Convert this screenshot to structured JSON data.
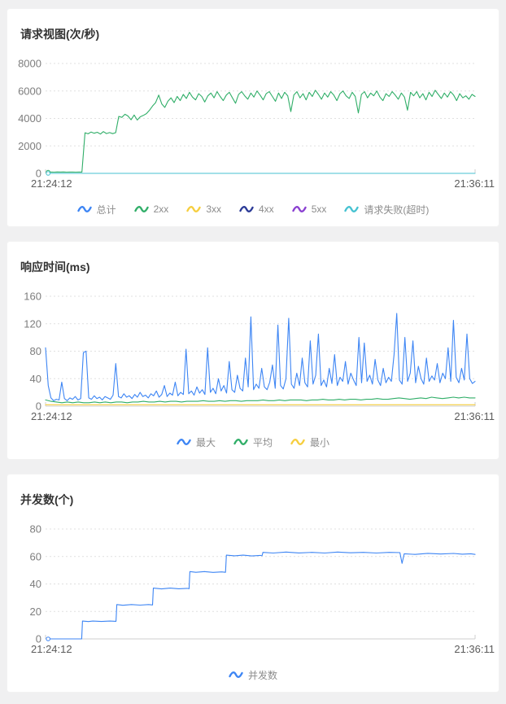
{
  "chart_data": [
    {
      "type": "line",
      "title": "请求视图(次/秒)",
      "ylim": [
        0,
        8000
      ],
      "y_ticks": [
        0,
        2000,
        4000,
        6000,
        8000
      ],
      "x_labels": [
        "21:24:12",
        "21:36:11"
      ],
      "grid": "horizontal-dotted",
      "legend_position": "bottom",
      "legend": [
        {
          "label": "总计",
          "color": "#3d85f4"
        },
        {
          "label": "2xx",
          "color": "#30ae68"
        },
        {
          "label": "3xx",
          "color": "#f6ce3f"
        },
        {
          "label": "4xx",
          "color": "#2b3a97"
        },
        {
          "label": "5xx",
          "color": "#8a3fd1"
        },
        {
          "label": "请求失败(超时)",
          "color": "#45c2d1"
        }
      ],
      "series": [
        {
          "name": "2xx",
          "color": "#30ae68",
          "x0": 0.006,
          "x1": 1.0,
          "start_marker": true,
          "values": [
            85,
            95,
            90,
            100,
            92,
            98,
            88,
            96,
            94,
            90,
            97,
            93,
            2950,
            2880,
            3010,
            2920,
            2990,
            2860,
            3040,
            2900,
            2970,
            2890,
            2960,
            4150,
            4080,
            4300,
            4180,
            3900,
            4250,
            3880,
            4120,
            4220,
            4350,
            4600,
            4900,
            5150,
            5700,
            5050,
            4800,
            5250,
            5500,
            5150,
            5600,
            5300,
            5750,
            5450,
            5900,
            5550,
            5350,
            5800,
            5600,
            5200,
            5650,
            5850,
            5500,
            5950,
            5600,
            5300,
            5700,
            5900,
            5500,
            5100,
            5750,
            5950,
            5650,
            5400,
            5850,
            5550,
            6000,
            5700,
            5350,
            5800,
            5950,
            5600,
            5250,
            5850,
            5450,
            5900,
            5650,
            4500,
            5700,
            5950,
            5500,
            5800,
            5350,
            5900,
            5600,
            6050,
            5750,
            5400,
            5850,
            5550,
            5950,
            5700,
            5300,
            5800,
            6000,
            5650,
            5450,
            5900,
            5600,
            4400,
            5750,
            5950,
            5500,
            5850,
            5650,
            6000,
            5550,
            5300,
            5800,
            5600,
            5950,
            5700,
            5400,
            5850,
            5550,
            4600,
            5900,
            5650,
            5950,
            5500,
            5800,
            5350,
            5900,
            5600,
            6050,
            5750,
            5450,
            5850,
            5550,
            5950,
            5700,
            5300,
            5800,
            5500,
            5650,
            5400,
            5750,
            5600
          ]
        },
        {
          "name": "请求失败(超时)",
          "color": "#45c2d1",
          "start_marker": true,
          "points": [
            [
              0.006,
              0
            ],
            [
              1.0,
              0
            ]
          ]
        }
      ]
    },
    {
      "type": "line",
      "title": "响应时间(ms)",
      "ylim": [
        0,
        160
      ],
      "y_ticks": [
        0,
        40,
        80,
        120,
        160
      ],
      "x_labels": [
        "21:24:12",
        "21:36:11"
      ],
      "grid": "horizontal-dotted",
      "legend_position": "bottom",
      "legend": [
        {
          "label": "最大",
          "color": "#3d85f4"
        },
        {
          "label": "平均",
          "color": "#30ae68"
        },
        {
          "label": "最小",
          "color": "#f6ce3f"
        }
      ],
      "series": [
        {
          "name": "最大",
          "color": "#3d85f4",
          "x0": 0.0,
          "x1": 1.0,
          "values": [
            85,
            30,
            12,
            8,
            10,
            9,
            35,
            11,
            8,
            12,
            10,
            14,
            9,
            11,
            78,
            80,
            12,
            10,
            15,
            11,
            13,
            9,
            14,
            12,
            10,
            16,
            62,
            14,
            12,
            18,
            13,
            15,
            11,
            17,
            13,
            20,
            14,
            16,
            12,
            18,
            15,
            22,
            13,
            17,
            30,
            14,
            19,
            16,
            35,
            15,
            20,
            17,
            83,
            18,
            22,
            16,
            28,
            19,
            24,
            17,
            85,
            20,
            26,
            18,
            40,
            22,
            30,
            19,
            65,
            24,
            20,
            45,
            26,
            22,
            70,
            28,
            130,
            24,
            32,
            26,
            55,
            28,
            24,
            35,
            60,
            26,
            118,
            30,
            25,
            40,
            128,
            32,
            26,
            48,
            30,
            70,
            34,
            28,
            95,
            32,
            45,
            105,
            30,
            38,
            28,
            55,
            33,
            75,
            30,
            42,
            36,
            65,
            32,
            48,
            38,
            30,
            100,
            34,
            92,
            36,
            45,
            32,
            68,
            38,
            30,
            55,
            34,
            42,
            36,
            75,
            135,
            38,
            32,
            100,
            36,
            48,
            95,
            34,
            58,
            40,
            32,
            70,
            36,
            44,
            38,
            62,
            34,
            48,
            40,
            85,
            36,
            125,
            42,
            34,
            55,
            38,
            105,
            40,
            33,
            36
          ]
        },
        {
          "name": "平均",
          "color": "#30ae68",
          "x0": 0.0,
          "x1": 1.0,
          "values": [
            9,
            7,
            6,
            5,
            6,
            5,
            6,
            5,
            5,
            6,
            5,
            6,
            5,
            6,
            6,
            5,
            6,
            6,
            7,
            6,
            6,
            7,
            6,
            7,
            7,
            6,
            7,
            7,
            7,
            8,
            7,
            7,
            8,
            7,
            8,
            8,
            7,
            8,
            8,
            8,
            9,
            8,
            8,
            9,
            8,
            9,
            9,
            9,
            8,
            9,
            9,
            10,
            9,
            9,
            10,
            9,
            10,
            10,
            9,
            10,
            10,
            11,
            10,
            10,
            11,
            12,
            11,
            10,
            11,
            12,
            11,
            13,
            12,
            11,
            12,
            13,
            12,
            13,
            12,
            12
          ]
        },
        {
          "name": "最小",
          "color": "#f6ce3f",
          "points": [
            [
              0.0,
              2
            ],
            [
              1.0,
              2
            ]
          ]
        }
      ]
    },
    {
      "type": "line",
      "title": "并发数(个)",
      "ylim": [
        0,
        80
      ],
      "y_ticks": [
        0,
        20,
        40,
        60,
        80
      ],
      "x_labels": [
        "21:24:12",
        "21:36:11"
      ],
      "grid": "horizontal-dotted",
      "legend_position": "bottom",
      "legend": [
        {
          "label": "并发数",
          "color": "#3d85f4"
        }
      ],
      "series": [
        {
          "name": "并发数",
          "color": "#3d85f4",
          "start_marker": true,
          "points": [
            [
              0.006,
              0
            ],
            [
              0.084,
              0
            ],
            [
              0.086,
              13
            ],
            [
              0.1,
              12.6
            ],
            [
              0.11,
              13
            ],
            [
              0.13,
              12.7
            ],
            [
              0.15,
              13
            ],
            [
              0.164,
              12.8
            ],
            [
              0.166,
              25
            ],
            [
              0.18,
              24.5
            ],
            [
              0.2,
              25
            ],
            [
              0.22,
              24.6
            ],
            [
              0.24,
              25
            ],
            [
              0.249,
              24.7
            ],
            [
              0.251,
              37
            ],
            [
              0.27,
              36.4
            ],
            [
              0.29,
              37
            ],
            [
              0.31,
              36.5
            ],
            [
              0.33,
              36.8
            ],
            [
              0.334,
              36.5
            ],
            [
              0.336,
              49
            ],
            [
              0.35,
              48.5
            ],
            [
              0.37,
              49
            ],
            [
              0.39,
              48.4
            ],
            [
              0.41,
              48.8
            ],
            [
              0.419,
              48.5
            ],
            [
              0.421,
              61
            ],
            [
              0.44,
              60.5
            ],
            [
              0.46,
              61
            ],
            [
              0.48,
              60.4
            ],
            [
              0.5,
              60.8
            ],
            [
              0.504,
              60.5
            ],
            [
              0.506,
              63
            ],
            [
              0.53,
              62.5
            ],
            [
              0.56,
              63.2
            ],
            [
              0.59,
              62.6
            ],
            [
              0.62,
              63
            ],
            [
              0.65,
              62.5
            ],
            [
              0.68,
              63.2
            ],
            [
              0.71,
              62.7
            ],
            [
              0.74,
              63
            ],
            [
              0.77,
              62.5
            ],
            [
              0.8,
              63
            ],
            [
              0.825,
              62.8
            ],
            [
              0.83,
              55
            ],
            [
              0.835,
              62
            ],
            [
              0.86,
              61.5
            ],
            [
              0.89,
              62.3
            ],
            [
              0.92,
              61.8
            ],
            [
              0.95,
              62.2
            ],
            [
              0.97,
              61.7
            ],
            [
              0.99,
              62
            ],
            [
              1.0,
              61.5
            ]
          ]
        }
      ]
    }
  ],
  "style_tokens": {
    "accent_blue": "#3d85f4",
    "accent_green": "#30ae68",
    "accent_yellow": "#f6ce3f",
    "accent_navy": "#2b3a97",
    "accent_purple": "#8a3fd1",
    "accent_teal": "#45c2d1",
    "grid_color": "#e0e0e0",
    "axis_color": "#cfcfcf",
    "tick_label_color": "#7d7d7d",
    "time_label_color": "#5c5c5c",
    "legend_text_color": "#8c8c8c"
  }
}
